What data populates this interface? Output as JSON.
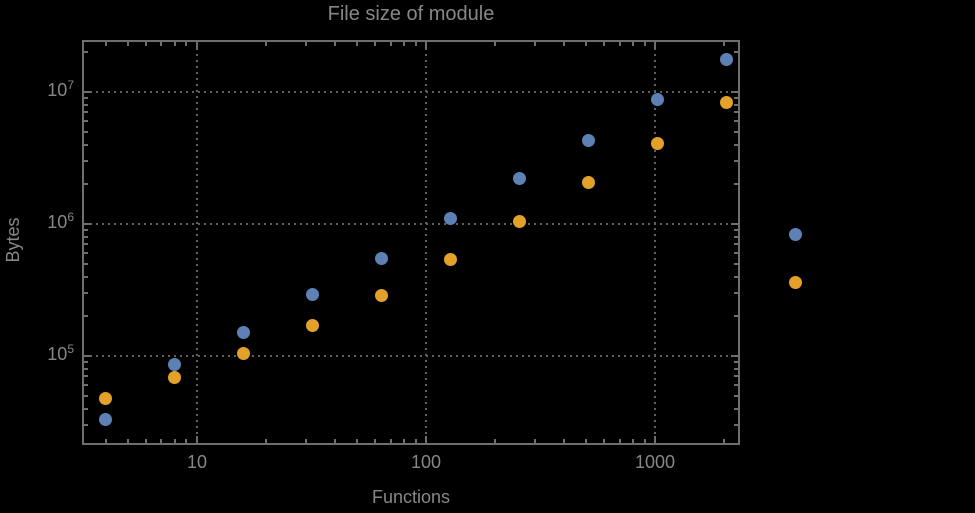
{
  "figure": {
    "title": "File size of module",
    "xlabel": "Functions",
    "ylabel": "Bytes"
  },
  "colors": {
    "background": "#000000",
    "text": "#878787",
    "frame": "#6e6e6e",
    "grid": "#606060",
    "series1": "#5e81b5",
    "series2": "#e3a129"
  },
  "chart_data": {
    "type": "scatter",
    "title": "File size of module",
    "xlabel": "Functions",
    "ylabel": "Bytes",
    "x_scale": "log",
    "y_scale": "log",
    "grid": "dotted",
    "legend": "none",
    "x": [
      4,
      8,
      16,
      32,
      64,
      128,
      256,
      512,
      1024,
      2048,
      4096
    ],
    "series": [
      {
        "name": "series-1-blue",
        "color": "#5e81b5",
        "values": [
          33000,
          86000,
          150000,
          290000,
          550000,
          1100000,
          2200000,
          4300000,
          8700000,
          17500000,
          830000
        ]
      },
      {
        "name": "series-2-orange",
        "color": "#e3a129",
        "values": [
          48000,
          69000,
          105000,
          170000,
          285000,
          540000,
          1040000,
          2050000,
          4100000,
          8300000,
          360000
        ]
      }
    ],
    "x_ticks": [
      {
        "value": 10,
        "label": "10"
      },
      {
        "value": 100,
        "label": "100"
      },
      {
        "value": 1000,
        "label": "1000"
      }
    ],
    "y_ticks": [
      {
        "value": 100000,
        "base": "10",
        "exp": "5"
      },
      {
        "value": 1000000,
        "base": "10",
        "exp": "6"
      },
      {
        "value": 10000000,
        "base": "10",
        "exp": "7"
      }
    ],
    "x_log_range": [
      0.498,
      3.371
    ],
    "y_log_range": [
      4.326,
      7.394
    ],
    "x_minor_decades": [
      0,
      1,
      2,
      3
    ],
    "y_minor_decades": [
      4,
      5,
      6,
      7
    ]
  }
}
